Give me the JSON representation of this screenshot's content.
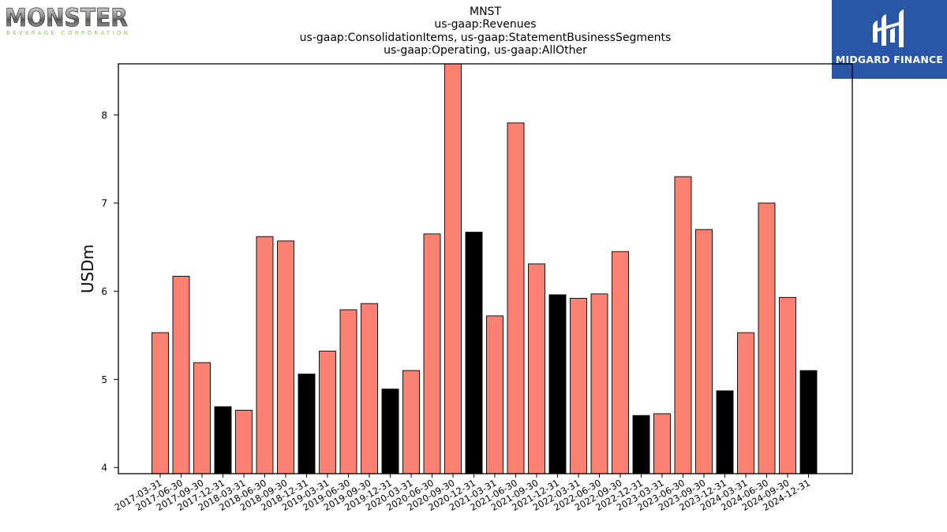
{
  "logos": {
    "left": {
      "brand": "MONSTER",
      "tagline": "BEVERAGE CORPORATION"
    },
    "right": {
      "name": "MIDGARD FINANCE",
      "icon": "midgard-finance-logo-icon",
      "background": "#2a56a8"
    }
  },
  "chart_data": {
    "type": "bar",
    "title_lines": [
      "MNST",
      "us-gaap:Revenues",
      "us-gaap:ConsolidationItems, us-gaap:StatementBusinessSegments",
      "us-gaap:Operating, us-gaap:AllOther"
    ],
    "xlabel": "",
    "ylabel": "USDm",
    "ylim": [
      3.93,
      8.58
    ],
    "yticks": [
      4,
      5,
      6,
      7,
      8
    ],
    "grid": false,
    "legend": "none",
    "colors": {
      "quarter": "#fa8072",
      "year_end": "#000000",
      "edge": "#000000"
    },
    "categories": [
      "2017-03-31",
      "2017-06-30",
      "2017-09-30",
      "2017-12-31",
      "2018-03-31",
      "2018-06-30",
      "2018-09-30",
      "2018-12-31",
      "2019-03-31",
      "2019-06-30",
      "2019-09-30",
      "2019-12-31",
      "2020-03-31",
      "2020-06-30",
      "2020-09-30",
      "2020-12-31",
      "2021-03-31",
      "2021-06-30",
      "2021-09-30",
      "2021-12-31",
      "2022-03-31",
      "2022-06-30",
      "2022-09-30",
      "2022-12-31",
      "2023-03-31",
      "2023-06-30",
      "2023-09-30",
      "2023-12-31",
      "2024-03-31",
      "2024-06-30",
      "2024-09-30",
      "2024-12-31"
    ],
    "values": [
      5.53,
      6.17,
      5.19,
      4.69,
      4.65,
      6.62,
      6.57,
      5.06,
      5.32,
      5.79,
      5.86,
      4.89,
      5.1,
      6.65,
      8.62,
      6.67,
      5.72,
      7.91,
      6.31,
      5.96,
      5.92,
      5.97,
      6.45,
      4.59,
      4.61,
      7.3,
      6.7,
      4.87,
      5.53,
      7.0,
      5.93,
      5.1
    ]
  }
}
